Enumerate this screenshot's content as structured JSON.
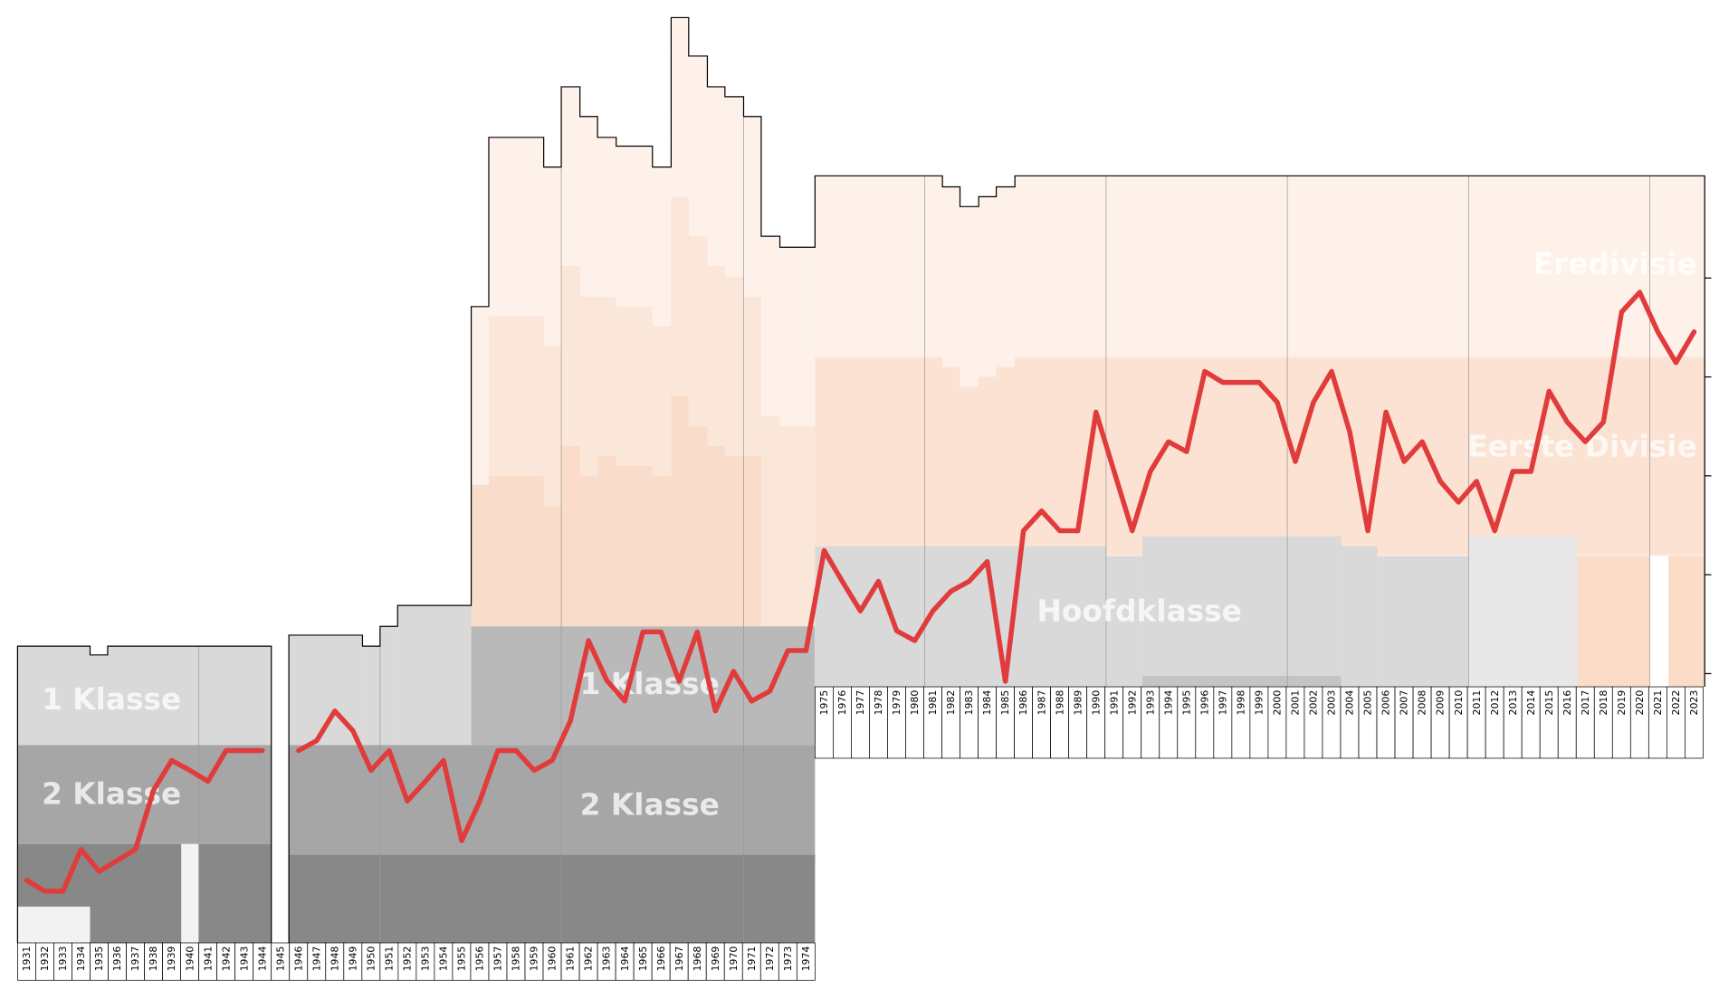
{
  "chart_data": {
    "type": "line",
    "categories": [
      "1931",
      "1932",
      "1933",
      "1934",
      "1935",
      "1936",
      "1937",
      "1938",
      "1939",
      "1940",
      "1941",
      "1942",
      "1943",
      "1944",
      "1945",
      "1946",
      "1947",
      "1948",
      "1949",
      "1950",
      "1951",
      "1952",
      "1953",
      "1954",
      "1955",
      "1956",
      "1957",
      "1958",
      "1959",
      "1960",
      "1961",
      "1962",
      "1963",
      "1964",
      "1965",
      "1966",
      "1967",
      "1968",
      "1969",
      "1970",
      "1971",
      "1972",
      "1973",
      "1974",
      "1975",
      "1976",
      "1977",
      "1978",
      "1979",
      "1980",
      "1981",
      "1982",
      "1983",
      "1984",
      "1985",
      "1986",
      "1987",
      "1988",
      "1989",
      "1990",
      "1991",
      "1992",
      "1993",
      "1994",
      "1995",
      "1996",
      "1997",
      "1998",
      "1999",
      "2000",
      "2001",
      "2002",
      "2003",
      "2004",
      "2005",
      "2006",
      "2007",
      "2008",
      "2009",
      "2010",
      "2011",
      "2012",
      "2013",
      "2014",
      "2015",
      "2016",
      "2017",
      "2018",
      "2019",
      "2020",
      "2021",
      "2022",
      "2023"
    ],
    "series": [
      {
        "color": "#e03c3c",
        "values": [
          57,
          47,
          47,
          85,
          65,
          75,
          85,
          139,
          166,
          157,
          147,
          175,
          175,
          175,
          null,
          175,
          184,
          211,
          193,
          157,
          175,
          129,
          147,
          166,
          93,
          129,
          175,
          175,
          157,
          166,
          202,
          275,
          239,
          220,
          283,
          283,
          238,
          283,
          211,
          247,
          220,
          229,
          266,
          266,
          357,
          329,
          302,
          329,
          284,
          275,
          302,
          320,
          329,
          347,
          238,
          375,
          393,
          375,
          375,
          483,
          429,
          375,
          429,
          456,
          447,
          520,
          510,
          510,
          510,
          492,
          438,
          492,
          520,
          465,
          375,
          483,
          438,
          456,
          420,
          401,
          420,
          375,
          429,
          429,
          502,
          474,
          456,
          474,
          574,
          592,
          556,
          528,
          556
        ]
      }
    ],
    "ylim": [
      0,
      858
    ],
    "yticks": [
      245,
      335,
      425,
      515,
      605
    ],
    "tier_labels": [
      "1 Klasse",
      "2 Klasse",
      "1 Klasse",
      "2 Klasse",
      "Hoofdklasse",
      "Eerste Divisie",
      "Eredivisie"
    ]
  }
}
